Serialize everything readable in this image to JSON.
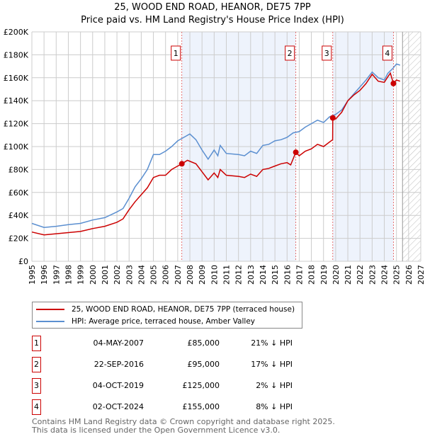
{
  "chart_data": {
    "type": "line",
    "title": "25, WOOD END ROAD, HEANOR, DE75 7PP",
    "subtitle": "Price paid vs. HM Land Registry's House Price Index (HPI)",
    "xlim": [
      1995,
      2027
    ],
    "ylim": [
      0,
      200000
    ],
    "x_ticks": [
      "1995",
      "1996",
      "1997",
      "1998",
      "1999",
      "2000",
      "2001",
      "2002",
      "2003",
      "2004",
      "2005",
      "2006",
      "2007",
      "2008",
      "2009",
      "2010",
      "2011",
      "2012",
      "2013",
      "2014",
      "2015",
      "2016",
      "2017",
      "2018",
      "2019",
      "2020",
      "2021",
      "2022",
      "2023",
      "2024",
      "2025",
      "2026",
      "2027"
    ],
    "y_ticks": [
      {
        "v": 0,
        "label": "£0"
      },
      {
        "v": 20000,
        "label": "£20K"
      },
      {
        "v": 40000,
        "label": "£40K"
      },
      {
        "v": 60000,
        "label": "£60K"
      },
      {
        "v": 80000,
        "label": "£80K"
      },
      {
        "v": 100000,
        "label": "£100K"
      },
      {
        "v": 120000,
        "label": "£120K"
      },
      {
        "v": 140000,
        "label": "£140K"
      },
      {
        "v": 160000,
        "label": "£160K"
      },
      {
        "v": 180000,
        "label": "£180K"
      },
      {
        "v": 200000,
        "label": "£200K"
      }
    ],
    "grid": true,
    "shaded_ranges": [
      [
        2007.34,
        2016.72
      ],
      [
        2019.76,
        2024.75
      ]
    ],
    "forecast_from": 2025.5,
    "series": [
      {
        "name": "25, WOOD END ROAD, HEANOR, DE75 7PP (terraced house)",
        "color": "#cc0000",
        "x": [
          1995,
          1996,
          1997,
          1998,
          1999,
          2000,
          2001,
          2002,
          2002.5,
          2003,
          2003.5,
          2004,
          2004.5,
          2005,
          2005.5,
          2006,
          2006.5,
          2007,
          2007.35,
          2007.8,
          2008.5,
          2009,
          2009.5,
          2010,
          2010.3,
          2010.5,
          2011,
          2012,
          2012.5,
          2013,
          2013.5,
          2014,
          2014.5,
          2015,
          2015.5,
          2016,
          2016.3,
          2016.72,
          2017,
          2017.5,
          2018,
          2018.5,
          2019,
          2019.5,
          2019.75,
          2019.76,
          2020,
          2020.5,
          2021,
          2021.5,
          2022,
          2022.5,
          2023,
          2023.5,
          2024,
          2024.3,
          2024.5,
          2024.75,
          2025,
          2025.3
        ],
        "y": [
          25500,
          23000,
          24000,
          25000,
          26000,
          28500,
          30500,
          34000,
          37000,
          45000,
          52000,
          58000,
          64000,
          73000,
          75000,
          75000,
          80000,
          83000,
          85000,
          88000,
          85000,
          78000,
          71000,
          77000,
          73000,
          80000,
          75000,
          74000,
          73000,
          76000,
          74000,
          80000,
          81000,
          83000,
          85000,
          86000,
          84000,
          95000,
          92000,
          96000,
          98000,
          102000,
          100000,
          104000,
          106000,
          125000,
          124000,
          130000,
          140000,
          145000,
          149000,
          155000,
          163000,
          157000,
          156000,
          161000,
          164000,
          155000,
          158000,
          157000
        ]
      },
      {
        "name": "HPI: Average price, terraced house, Amber Valley",
        "color": "#5b8fd0",
        "x": [
          1995,
          1996,
          1997,
          1998,
          1999,
          2000,
          2001,
          2002,
          2002.5,
          2003,
          2003.5,
          2004,
          2004.5,
          2005,
          2005.5,
          2006,
          2006.5,
          2007,
          2007.5,
          2008,
          2008.5,
          2009,
          2009.5,
          2010,
          2010.3,
          2010.5,
          2011,
          2012,
          2012.5,
          2013,
          2013.5,
          2014,
          2014.5,
          2015,
          2015.5,
          2016,
          2016.5,
          2017,
          2017.5,
          2018,
          2018.5,
          2019,
          2019.5,
          2020,
          2020.5,
          2021,
          2021.5,
          2022,
          2022.5,
          2023,
          2023.5,
          2024,
          2024.3,
          2024.7,
          2025,
          2025.3
        ],
        "y": [
          33000,
          29500,
          30500,
          32000,
          33000,
          36000,
          38000,
          43000,
          46000,
          55000,
          65000,
          72000,
          80000,
          93000,
          93000,
          96000,
          100000,
          105000,
          108000,
          111000,
          106000,
          97000,
          89000,
          97000,
          92000,
          101000,
          94000,
          93000,
          92000,
          96000,
          94000,
          101000,
          102000,
          105000,
          106000,
          108000,
          112000,
          113000,
          117000,
          120000,
          123000,
          121000,
          126000,
          128000,
          132000,
          140000,
          146000,
          152000,
          158000,
          165000,
          160000,
          158000,
          164000,
          168000,
          172000,
          171000
        ]
      }
    ],
    "sales": [
      {
        "n": "1",
        "x": 2007.34,
        "y": 85000
      },
      {
        "n": "2",
        "x": 2016.72,
        "y": 95000
      },
      {
        "n": "3",
        "x": 2019.76,
        "y": 125000
      },
      {
        "n": "4",
        "x": 2024.75,
        "y": 155000
      }
    ]
  },
  "title": "25, WOOD END ROAD, HEANOR, DE75 7PP",
  "subtitle": "Price paid vs. HM Land Registry's House Price Index (HPI)",
  "legend": {
    "property": "25, WOOD END ROAD, HEANOR, DE75 7PP (terraced house)",
    "hpi": "HPI: Average price, terraced house, Amber Valley",
    "property_color": "#cc0000",
    "hpi_color": "#5b8fd0"
  },
  "sales_table": [
    {
      "n": "1",
      "date": "04-MAY-2007",
      "price": "£85,000",
      "hpi": "21% ↓ HPI"
    },
    {
      "n": "2",
      "date": "22-SEP-2016",
      "price": "£95,000",
      "hpi": "17% ↓ HPI"
    },
    {
      "n": "3",
      "date": "04-OCT-2019",
      "price": "£125,000",
      "hpi": "2% ↓ HPI"
    },
    {
      "n": "4",
      "date": "02-OCT-2024",
      "price": "£155,000",
      "hpi": "8% ↓ HPI"
    }
  ],
  "footer": {
    "line1": "Contains HM Land Registry data © Crown copyright and database right 2025.",
    "line2": "This data is licensed under the Open Government Licence v3.0."
  }
}
